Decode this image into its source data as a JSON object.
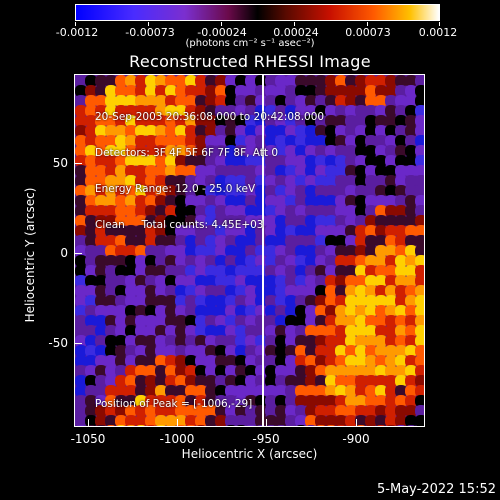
{
  "colorbar": {
    "tick_labels": [
      "-0.0012",
      "-0.00073",
      "-0.00024",
      "0.00024",
      "0.00073",
      "0.0012"
    ],
    "units": "(photons cm⁻² s⁻¹ asec⁻²)",
    "colors": [
      "#0000ff",
      "#7b2fcf",
      "#000000",
      "#c81000",
      "#ffc000",
      "#ffffff"
    ]
  },
  "title": "Reconstructed RHESSI Image",
  "overlay": {
    "line1": "20-Sep-2003 20:36:08.000 to 20:42:08.000",
    "line2": "Detectors: 3F 4F 5F 6F 7F 8F, Att 0",
    "line3": "Energy Range: 12.0 - 25.0 keV",
    "line4": "Clean     Total counts: 4.45E+03",
    "peak": "Position of Peak = [-1006,-29]"
  },
  "axes": {
    "xlabel": "Heliocentric X (arcsec)",
    "ylabel": "Heliocentric Y (arcsec)",
    "x_ticks": [
      "-1050",
      "-1000",
      "-950",
      "-900"
    ],
    "y_ticks": [
      "50",
      "0",
      "-50"
    ]
  },
  "footer_date": "5-May-2022 15:52"
}
